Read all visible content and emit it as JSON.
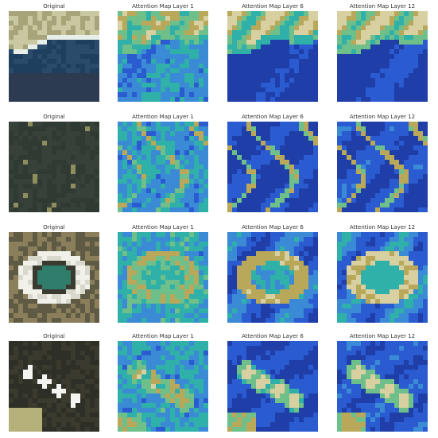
{
  "figure": {
    "rows": [
      {
        "kind": "coast",
        "panels": [
          {
            "title": "Original",
            "style": "original"
          },
          {
            "title": "Attention Map Layer 1",
            "style": "layer1"
          },
          {
            "title": "Attention Map Layer 6",
            "style": "layer6"
          },
          {
            "title": "Attention Map Layer 12",
            "style": "layer12"
          }
        ]
      },
      {
        "kind": "dark-terrain",
        "panels": [
          {
            "title": "Original",
            "style": "original"
          },
          {
            "title": "Attention Map Layer 1",
            "style": "layer1"
          },
          {
            "title": "Attention Map Layer 6",
            "style": "layer6"
          },
          {
            "title": "Attention Map Layer 12",
            "style": "layer12"
          }
        ]
      },
      {
        "kind": "stadium",
        "panels": [
          {
            "title": "Original",
            "style": "original"
          },
          {
            "title": "Attention Map Layer 1",
            "style": "layer1"
          },
          {
            "title": "Attention Map Layer 6",
            "style": "layer6"
          },
          {
            "title": "Attention Map Layer 12",
            "style": "layer12"
          }
        ]
      },
      {
        "kind": "storage-tanks",
        "panels": [
          {
            "title": "Original",
            "style": "original"
          },
          {
            "title": "Attention Map Layer 1",
            "style": "layer1"
          },
          {
            "title": "Attention Map Layer 6",
            "style": "layer6"
          },
          {
            "title": "Attention Map Layer 12",
            "style": "layer12"
          }
        ]
      }
    ],
    "colormap": [
      "#1f3ea8",
      "#2a5bd0",
      "#3a8ad6",
      "#2fb0a8",
      "#6fbf8a",
      "#b9a85a",
      "#d8d0a0"
    ]
  }
}
